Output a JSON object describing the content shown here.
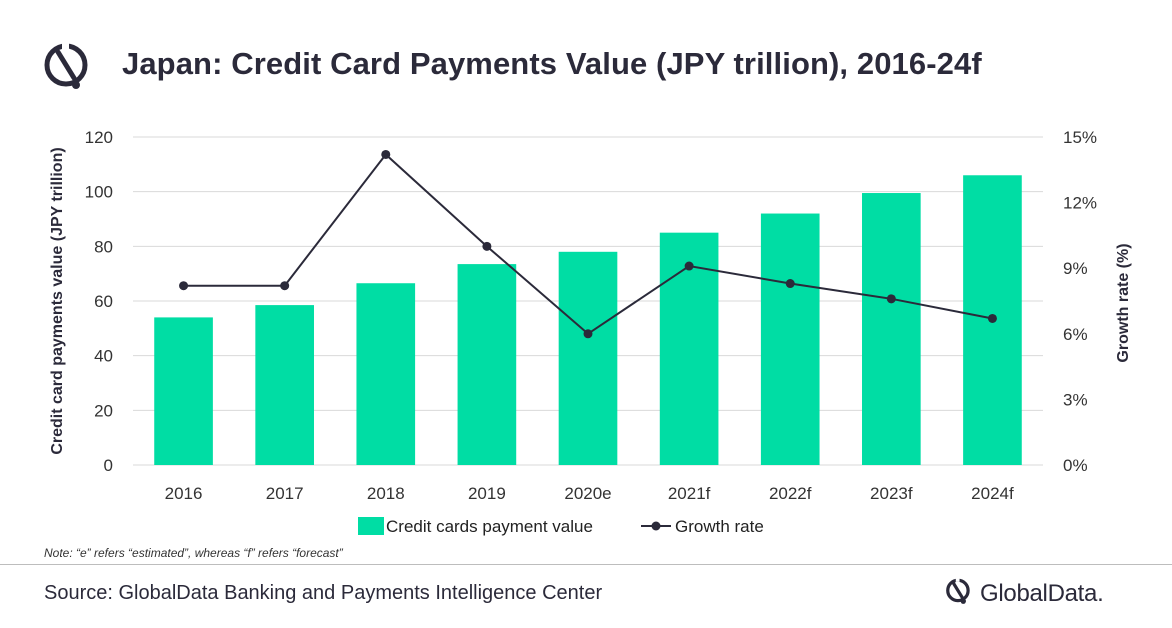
{
  "header": {
    "title": "Japan: Credit Card Payments Value (JPY trillion), 2016-24f"
  },
  "footer": {
    "note": "Note: “e” refers “estimated”, whereas “f” refers “forecast”",
    "source": "Source: GlobalData Banking and Payments Intelligence Center",
    "brand": "GlobalData."
  },
  "icons": {
    "header_logo": "globaldata-logo-icon",
    "brand_logo": "globaldata-logo-icon"
  },
  "colors": {
    "bar": "#00DDA4",
    "line": "#2B2A3A",
    "grid": "#D9D9D9"
  },
  "chart_data": {
    "type": "bar",
    "categories": [
      "2016",
      "2017",
      "2018",
      "2019",
      "2020e",
      "2021f",
      "2022f",
      "2023f",
      "2024f"
    ],
    "series": [
      {
        "name": "Credit cards payment value",
        "type": "bar",
        "axis": "left",
        "values": [
          54,
          58.5,
          66.5,
          73.5,
          78,
          85,
          92,
          99.5,
          106
        ]
      },
      {
        "name": "Growth rate",
        "type": "line",
        "axis": "right",
        "values": [
          8.2,
          8.2,
          14.2,
          10.0,
          6.0,
          9.1,
          8.3,
          7.6,
          6.7
        ]
      }
    ],
    "ylabel": "Credit card payments value (JPY trillion)",
    "ylim": [
      0,
      120
    ],
    "yticks": [
      "0",
      "20",
      "40",
      "60",
      "80",
      "100",
      "120"
    ],
    "y2label": "Growth rate (%)",
    "y2lim": [
      0,
      15
    ],
    "y2ticks": [
      "0%",
      "3%",
      "6%",
      "9%",
      "12%",
      "15%"
    ],
    "grid": true,
    "legend_position": "bottom"
  }
}
